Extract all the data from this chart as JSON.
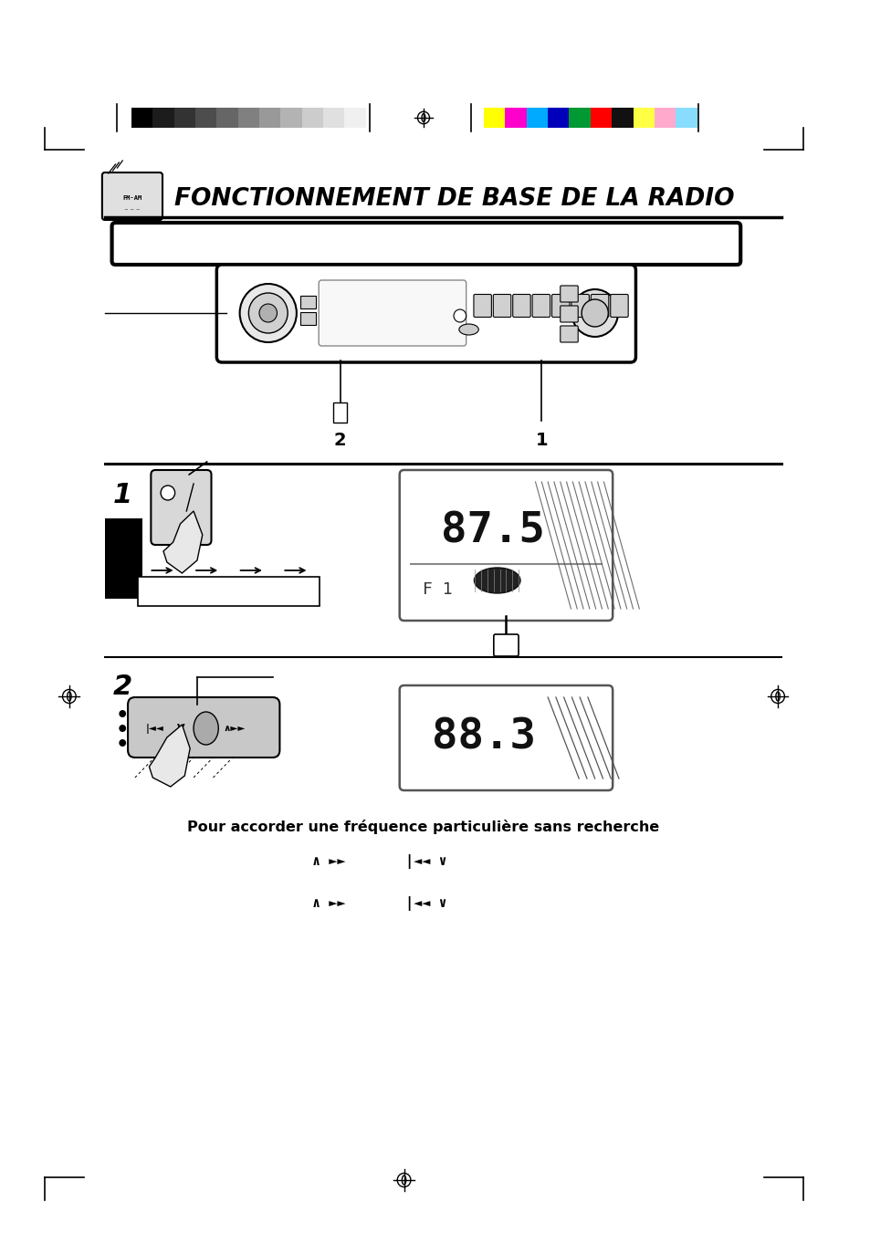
{
  "bg_color": "#ffffff",
  "page_width": 9.54,
  "page_height": 13.51,
  "title_text": "FONCTIONNEMENT DE BASE DE LA RADIO",
  "freq1_text": "87.5",
  "freq1_sub": "F 1",
  "freq2_text": "88.3",
  "para_title": "Pour accorder une fréquence particulière sans recherche",
  "gray_colors": [
    "#000000",
    "#1c1c1c",
    "#333333",
    "#4d4d4d",
    "#666666",
    "#808080",
    "#999999",
    "#b3b3b3",
    "#cccccc",
    "#e0e0e0",
    "#f0f0f0"
  ],
  "color_bars": [
    "#ffff00",
    "#ff00cc",
    "#00aaff",
    "#0000bb",
    "#009933",
    "#ff0000",
    "#111111",
    "#ffff44",
    "#ffaacc",
    "#88ddff"
  ]
}
